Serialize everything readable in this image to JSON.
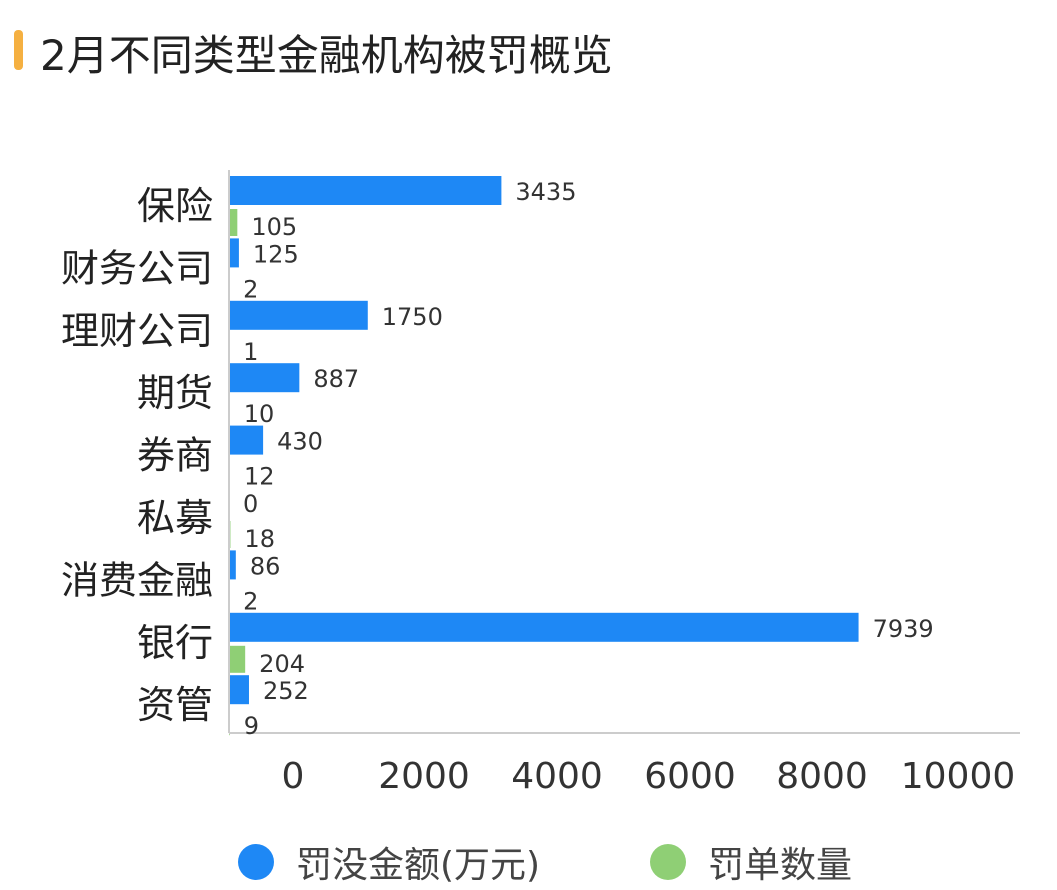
{
  "title": "2月不同类型金融机构被罚概览",
  "colors": {
    "accent": "#f5b041",
    "series1": "#1e88f5",
    "series2": "#8fcf75"
  },
  "chart_data": {
    "type": "bar",
    "orientation": "horizontal",
    "categories": [
      "保险",
      "财务公司",
      "理财公司",
      "期货",
      "券商",
      "私募",
      "消费金融",
      "银行",
      "资管"
    ],
    "series": [
      {
        "name": "罚没金额(万元)",
        "values": [
          3435,
          125,
          1750,
          887,
          430,
          0,
          86,
          7939,
          252
        ]
      },
      {
        "name": "罚单数量",
        "values": [
          105,
          2,
          1,
          10,
          12,
          18,
          2,
          204,
          9
        ]
      }
    ],
    "xticks": [
      "0",
      "2000",
      "4000",
      "6000",
      "8000",
      "10000"
    ],
    "xlim": [
      0,
      10000
    ],
    "grid": false,
    "legend": "bottom"
  }
}
